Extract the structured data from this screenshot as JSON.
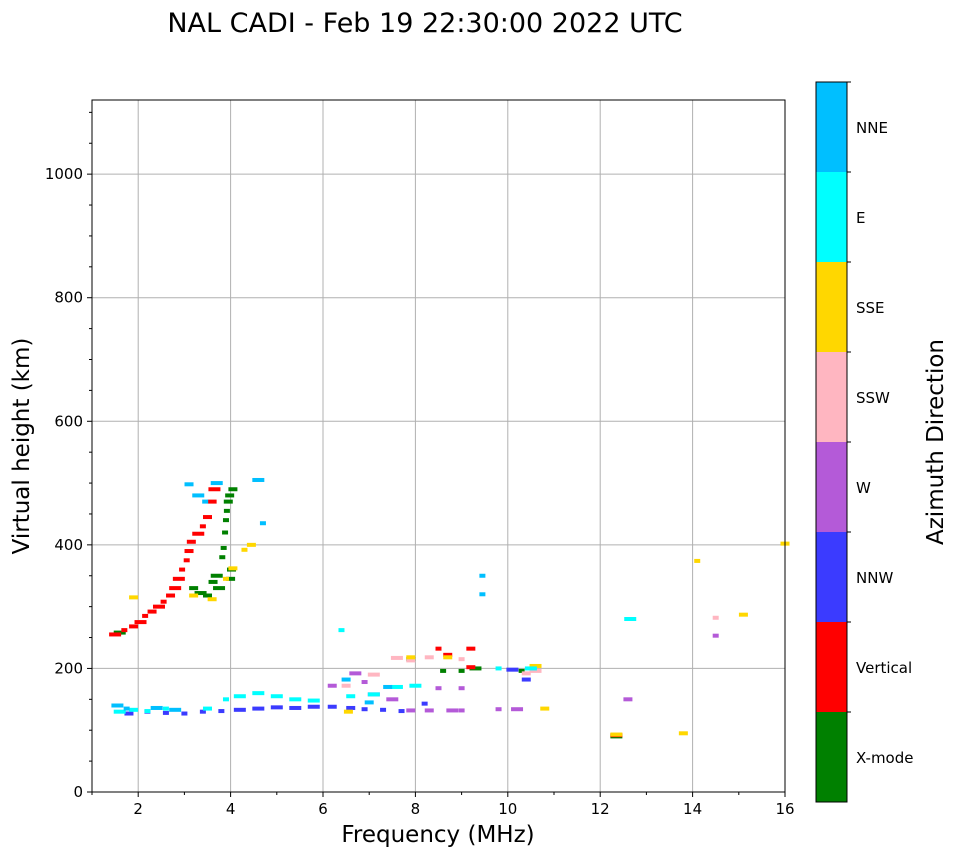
{
  "chart_data": {
    "type": "scatter",
    "title": "NAL CADI - Feb 19 22:30:00 2022 UTC",
    "xlabel": "Frequency (MHz)",
    "ylabel": "Virtual height (km)",
    "xlim": [
      1,
      16
    ],
    "ylim": [
      0,
      1120
    ],
    "xticks": [
      2,
      4,
      6,
      8,
      10,
      12,
      14,
      16
    ],
    "yticks": [
      0,
      200,
      400,
      600,
      800,
      1000
    ],
    "grid": true,
    "colorbar": {
      "label": "Azimuth Direction",
      "categories": [
        "X-mode",
        "Vertical",
        "NNW",
        "W",
        "SSW",
        "SSE",
        "E",
        "NNE"
      ],
      "colors": [
        "#008000",
        "#ff0000",
        "#3b3bff",
        "#b45ad8",
        "#ffb6c1",
        "#ffd700",
        "#00ffff",
        "#00bfff"
      ]
    },
    "series": [
      {
        "name": "X-mode",
        "points": [
          [
            1.6,
            258
          ],
          [
            3.2,
            330
          ],
          [
            3.35,
            322
          ],
          [
            3.5,
            318
          ],
          [
            3.62,
            340
          ],
          [
            3.7,
            350
          ],
          [
            3.75,
            330
          ],
          [
            3.82,
            380
          ],
          [
            3.85,
            395
          ],
          [
            3.88,
            420
          ],
          [
            3.9,
            440
          ],
          [
            3.92,
            455
          ],
          [
            3.95,
            470
          ],
          [
            3.98,
            480
          ],
          [
            4.0,
            345
          ],
          [
            4.02,
            360
          ],
          [
            4.05,
            490
          ],
          [
            7.9,
            215
          ],
          [
            8.6,
            196
          ],
          [
            9.0,
            196
          ],
          [
            9.3,
            200
          ],
          [
            10.3,
            196
          ],
          [
            12.35,
            90
          ]
        ]
      },
      {
        "name": "Vertical",
        "points": [
          [
            1.5,
            255
          ],
          [
            1.7,
            262
          ],
          [
            1.9,
            268
          ],
          [
            2.05,
            275
          ],
          [
            2.15,
            285
          ],
          [
            2.3,
            292
          ],
          [
            2.45,
            300
          ],
          [
            2.55,
            308
          ],
          [
            2.7,
            318
          ],
          [
            2.8,
            330
          ],
          [
            2.88,
            345
          ],
          [
            2.95,
            360
          ],
          [
            3.05,
            375
          ],
          [
            3.1,
            390
          ],
          [
            3.15,
            405
          ],
          [
            3.3,
            418
          ],
          [
            3.4,
            430
          ],
          [
            3.5,
            445
          ],
          [
            3.6,
            470
          ],
          [
            3.65,
            490
          ],
          [
            8.5,
            232
          ],
          [
            8.7,
            222
          ],
          [
            9.2,
            232
          ],
          [
            9.2,
            202
          ],
          [
            12.35,
            92
          ]
        ]
      },
      {
        "name": "NNW",
        "points": [
          [
            1.8,
            127
          ],
          [
            2.2,
            130
          ],
          [
            2.6,
            128
          ],
          [
            3.0,
            127
          ],
          [
            3.4,
            130
          ],
          [
            3.8,
            131
          ],
          [
            4.2,
            133
          ],
          [
            4.6,
            135
          ],
          [
            5.0,
            137
          ],
          [
            5.4,
            136
          ],
          [
            5.8,
            138
          ],
          [
            6.2,
            138
          ],
          [
            6.6,
            136
          ],
          [
            6.9,
            134
          ],
          [
            7.3,
            133
          ],
          [
            7.7,
            131
          ],
          [
            8.2,
            143
          ],
          [
            10.1,
            198
          ],
          [
            10.4,
            182
          ]
        ]
      },
      {
        "name": "W",
        "points": [
          [
            6.2,
            172
          ],
          [
            6.7,
            192
          ],
          [
            6.9,
            178
          ],
          [
            7.1,
            158
          ],
          [
            7.5,
            150
          ],
          [
            7.9,
            132
          ],
          [
            8.3,
            132
          ],
          [
            8.5,
            168
          ],
          [
            8.8,
            132
          ],
          [
            9.0,
            132
          ],
          [
            9.0,
            168
          ],
          [
            9.8,
            134
          ],
          [
            10.2,
            134
          ],
          [
            12.6,
            150
          ],
          [
            14.5,
            253
          ]
        ]
      },
      {
        "name": "SSW",
        "points": [
          [
            6.5,
            172
          ],
          [
            7.1,
            190
          ],
          [
            7.6,
            217
          ],
          [
            7.9,
            213
          ],
          [
            8.3,
            218
          ],
          [
            9.0,
            215
          ],
          [
            10.4,
            192
          ],
          [
            10.6,
            196
          ],
          [
            14.5,
            282
          ]
        ]
      },
      {
        "name": "SSE",
        "points": [
          [
            1.9,
            315
          ],
          [
            3.2,
            318
          ],
          [
            3.6,
            312
          ],
          [
            3.9,
            345
          ],
          [
            4.05,
            362
          ],
          [
            4.3,
            392
          ],
          [
            4.45,
            400
          ],
          [
            6.55,
            130
          ],
          [
            7.9,
            218
          ],
          [
            8.7,
            218
          ],
          [
            10.6,
            204
          ],
          [
            10.8,
            135
          ],
          [
            12.35,
            93
          ],
          [
            13.8,
            95
          ],
          [
            14.1,
            374
          ],
          [
            15.1,
            287
          ],
          [
            16,
            402
          ]
        ]
      },
      {
        "name": "E",
        "points": [
          [
            1.6,
            130
          ],
          [
            1.9,
            133
          ],
          [
            2.2,
            131
          ],
          [
            2.6,
            135
          ],
          [
            3.5,
            135
          ],
          [
            3.9,
            150
          ],
          [
            4.2,
            155
          ],
          [
            4.6,
            160
          ],
          [
            5.0,
            155
          ],
          [
            5.4,
            150
          ],
          [
            5.8,
            148
          ],
          [
            6.4,
            262
          ],
          [
            6.6,
            155
          ],
          [
            7.1,
            158
          ],
          [
            7.6,
            170
          ],
          [
            8.0,
            172
          ],
          [
            9.8,
            200
          ],
          [
            10.5,
            200
          ],
          [
            12.65,
            280
          ]
        ]
      },
      {
        "name": "NNE",
        "points": [
          [
            1.55,
            140
          ],
          [
            1.75,
            135
          ],
          [
            2.4,
            136
          ],
          [
            2.8,
            133
          ],
          [
            3.1,
            498
          ],
          [
            3.3,
            480
          ],
          [
            3.45,
            470
          ],
          [
            3.7,
            500
          ],
          [
            4.6,
            505
          ],
          [
            4.7,
            435
          ],
          [
            6.5,
            182
          ],
          [
            7.0,
            145
          ],
          [
            7.4,
            170
          ],
          [
            9.45,
            350
          ],
          [
            9.45,
            320
          ]
        ]
      }
    ]
  }
}
